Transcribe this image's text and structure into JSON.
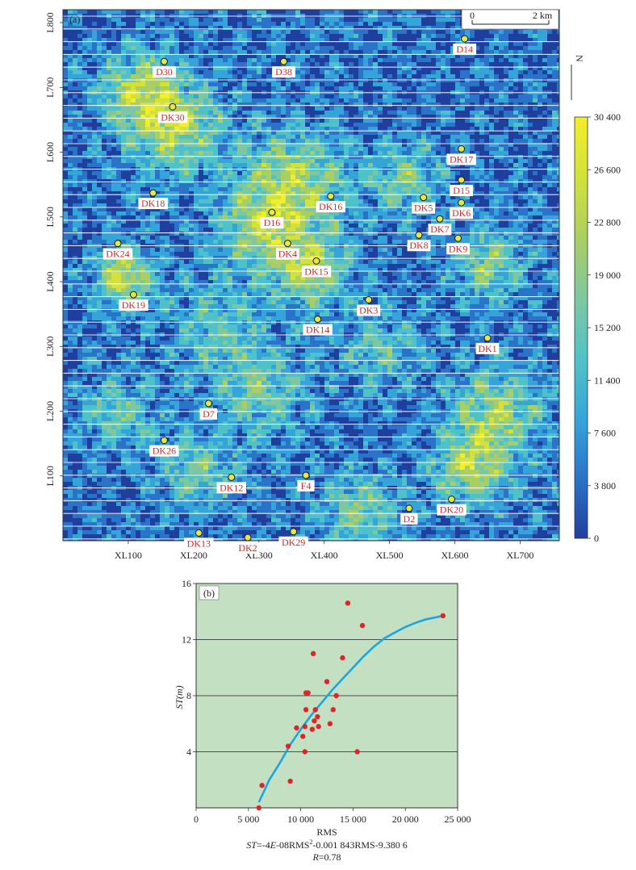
{
  "chart_data": [
    {
      "panel": "(a)",
      "type": "heatmap",
      "colorbar": {
        "ticks": [
          "30 400",
          "26 600",
          "22 800",
          "19 000",
          "15 200",
          "11 400",
          "7 600",
          "3 800",
          "0"
        ],
        "range": [
          0,
          30400
        ],
        "colors": [
          "#1f3f9e",
          "#2b72c9",
          "#35a4d8",
          "#4fc2c9",
          "#7ec8a1",
          "#a9cf63",
          "#d3e23a",
          "#f3ed2a"
        ]
      },
      "x_axis": {
        "ticks": [
          "XL100",
          "XL200",
          "XL300",
          "XL400",
          "XL500",
          "XL600",
          "XL700"
        ],
        "tick_values": [
          100,
          200,
          300,
          400,
          500,
          600,
          700
        ],
        "range": [
          0,
          760
        ]
      },
      "y_axis": {
        "ticks": [
          "L100",
          "L200",
          "L300",
          "L400",
          "L500",
          "L600",
          "L700",
          "L800"
        ],
        "tick_values": [
          100,
          200,
          300,
          400,
          500,
          600,
          700,
          800
        ],
        "range": [
          0,
          820
        ]
      },
      "scale_bar": {
        "start": "0",
        "end": "2 km"
      },
      "north_label": "N",
      "wells": [
        {
          "name": "D14",
          "x": 615,
          "y": 775
        },
        {
          "name": "D30",
          "x": 155,
          "y": 740
        },
        {
          "name": "D38",
          "x": 338,
          "y": 740
        },
        {
          "name": "DK30",
          "x": 168,
          "y": 670
        },
        {
          "name": "DK17",
          "x": 610,
          "y": 605
        },
        {
          "name": "D15",
          "x": 610,
          "y": 557
        },
        {
          "name": "DK18",
          "x": 138,
          "y": 537
        },
        {
          "name": "DK16",
          "x": 410,
          "y": 532
        },
        {
          "name": "DK5",
          "x": 552,
          "y": 530
        },
        {
          "name": "DK6",
          "x": 610,
          "y": 522
        },
        {
          "name": "D16",
          "x": 320,
          "y": 507
        },
        {
          "name": "DK7",
          "x": 577,
          "y": 497
        },
        {
          "name": "DK8",
          "x": 545,
          "y": 472
        },
        {
          "name": "DK9",
          "x": 605,
          "y": 467
        },
        {
          "name": "DK24",
          "x": 84,
          "y": 459
        },
        {
          "name": "DK4",
          "x": 344,
          "y": 459
        },
        {
          "name": "DK15",
          "x": 388,
          "y": 432
        },
        {
          "name": "DK19",
          "x": 108,
          "y": 380
        },
        {
          "name": "DK3",
          "x": 468,
          "y": 372
        },
        {
          "name": "DK14",
          "x": 390,
          "y": 342
        },
        {
          "name": "DK1",
          "x": 650,
          "y": 313
        },
        {
          "name": "D7",
          "x": 223,
          "y": 212
        },
        {
          "name": "DK26",
          "x": 155,
          "y": 155
        },
        {
          "name": "DK12",
          "x": 258,
          "y": 98
        },
        {
          "name": "F4",
          "x": 372,
          "y": 101
        },
        {
          "name": "DK20",
          "x": 595,
          "y": 64
        },
        {
          "name": "D2",
          "x": 530,
          "y": 50
        },
        {
          "name": "DK13",
          "x": 208,
          "y": 12
        },
        {
          "name": "DK2",
          "x": 283,
          "y": 5
        },
        {
          "name": "DK29",
          "x": 353,
          "y": 14
        }
      ]
    },
    {
      "panel": "(b)",
      "type": "scatter",
      "xlabel": "RMS",
      "ylabel": "ST(m)",
      "xlim": [
        0,
        25000
      ],
      "ylim": [
        0,
        16
      ],
      "x_ticks": [
        "0",
        "5 000",
        "10 000",
        "15 000",
        "20 000",
        "25 000"
      ],
      "x_tick_values": [
        0,
        5000,
        10000,
        15000,
        20000,
        25000
      ],
      "y_ticks": [
        "4",
        "8",
        "12",
        "16"
      ],
      "y_tick_values": [
        4,
        8,
        12,
        16
      ],
      "grid": "horizontal",
      "points": [
        {
          "x": 6000,
          "y": 0.0
        },
        {
          "x": 6300,
          "y": 1.6
        },
        {
          "x": 9000,
          "y": 1.9
        },
        {
          "x": 8800,
          "y": 4.4
        },
        {
          "x": 9600,
          "y": 5.7
        },
        {
          "x": 10200,
          "y": 5.1
        },
        {
          "x": 10400,
          "y": 5.8
        },
        {
          "x": 10400,
          "y": 4.0
        },
        {
          "x": 10500,
          "y": 7.0
        },
        {
          "x": 10500,
          "y": 8.2
        },
        {
          "x": 10700,
          "y": 8.2
        },
        {
          "x": 11100,
          "y": 5.6
        },
        {
          "x": 11200,
          "y": 11.0
        },
        {
          "x": 11300,
          "y": 6.2
        },
        {
          "x": 11400,
          "y": 7.0
        },
        {
          "x": 11600,
          "y": 6.5
        },
        {
          "x": 11700,
          "y": 5.8
        },
        {
          "x": 12500,
          "y": 9.0
        },
        {
          "x": 12800,
          "y": 6.0
        },
        {
          "x": 13100,
          "y": 7.0
        },
        {
          "x": 13400,
          "y": 8.0
        },
        {
          "x": 14000,
          "y": 10.7
        },
        {
          "x": 14500,
          "y": 14.6
        },
        {
          "x": 15400,
          "y": 4.0
        },
        {
          "x": 15900,
          "y": 13.0
        },
        {
          "x": 23600,
          "y": 13.7
        }
      ],
      "fit_curve": [
        {
          "x": 6000,
          "y": 0.4
        },
        {
          "x": 7000,
          "y": 2.0
        },
        {
          "x": 8000,
          "y": 3.2
        },
        {
          "x": 9000,
          "y": 4.5
        },
        {
          "x": 10000,
          "y": 5.6
        },
        {
          "x": 11000,
          "y": 6.6
        },
        {
          "x": 12000,
          "y": 7.5
        },
        {
          "x": 13000,
          "y": 8.4
        },
        {
          "x": 14000,
          "y": 9.2
        },
        {
          "x": 15000,
          "y": 10.0
        },
        {
          "x": 16000,
          "y": 10.8
        },
        {
          "x": 17000,
          "y": 11.5
        },
        {
          "x": 18000,
          "y": 12.1
        },
        {
          "x": 19000,
          "y": 12.5
        },
        {
          "x": 20000,
          "y": 12.9
        },
        {
          "x": 21000,
          "y": 13.2
        },
        {
          "x": 22000,
          "y": 13.45
        },
        {
          "x": 23000,
          "y": 13.6
        },
        {
          "x": 23600,
          "y": 13.7
        }
      ],
      "equation_parts": [
        "ST",
        "=-4",
        "E",
        "-08RMS",
        "2",
        "-0.001 843RMS-9.380 6"
      ],
      "r_label": "R",
      "r_value": "=0.78",
      "colors": {
        "background": "#c4e0c3",
        "curve": "#1aa7e0",
        "points": "#e0242a"
      }
    }
  ]
}
